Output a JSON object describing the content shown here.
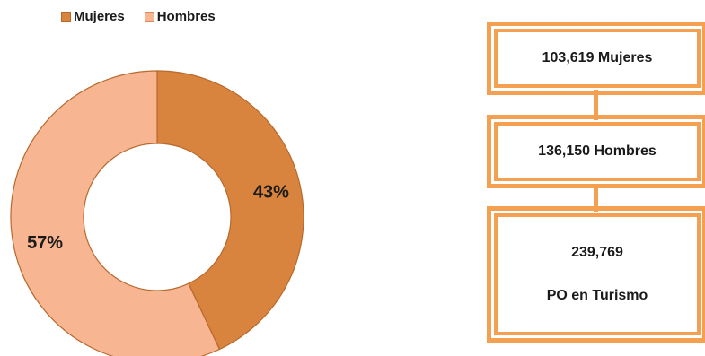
{
  "colors": {
    "mujeres": "#d9843e",
    "hombres": "#f8b592",
    "box_border": "#f5a050",
    "slice_stroke": "#b8692c"
  },
  "chart_data": {
    "type": "pie",
    "variant": "donut",
    "title": "",
    "legend": {
      "placement": "top-left",
      "entries": [
        "Mujeres",
        "Hombres"
      ]
    },
    "categories": [
      "Mujeres",
      "Hombres"
    ],
    "values": [
      43,
      57
    ],
    "data_labels": [
      "43%",
      "57%"
    ]
  },
  "boxes": [
    {
      "text": "103,619 Mujeres"
    },
    {
      "text": "136,150 Hombres"
    },
    {
      "line1": "239,769",
      "line2": "PO en Turismo"
    }
  ]
}
